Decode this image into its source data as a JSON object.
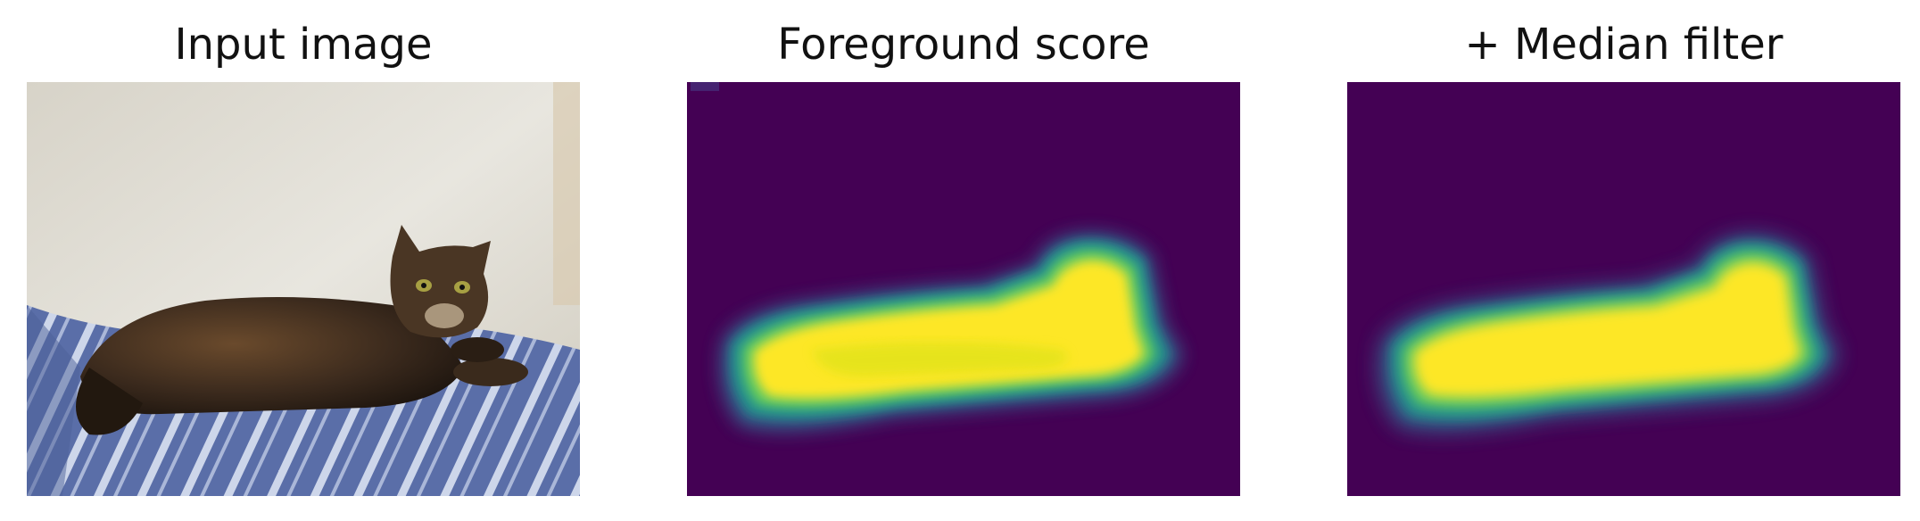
{
  "panels": [
    {
      "title": "Input image"
    },
    {
      "title": "Foreground score"
    },
    {
      "title": "+ Median filter"
    }
  ],
  "colors": {
    "background_score": "#440154",
    "mid_score": "#21918c",
    "high_score": "#fde725",
    "wall": "#e4e1d8",
    "blanket_blue": "#5a6ea8",
    "cat_fur": "#3a2a1e"
  }
}
